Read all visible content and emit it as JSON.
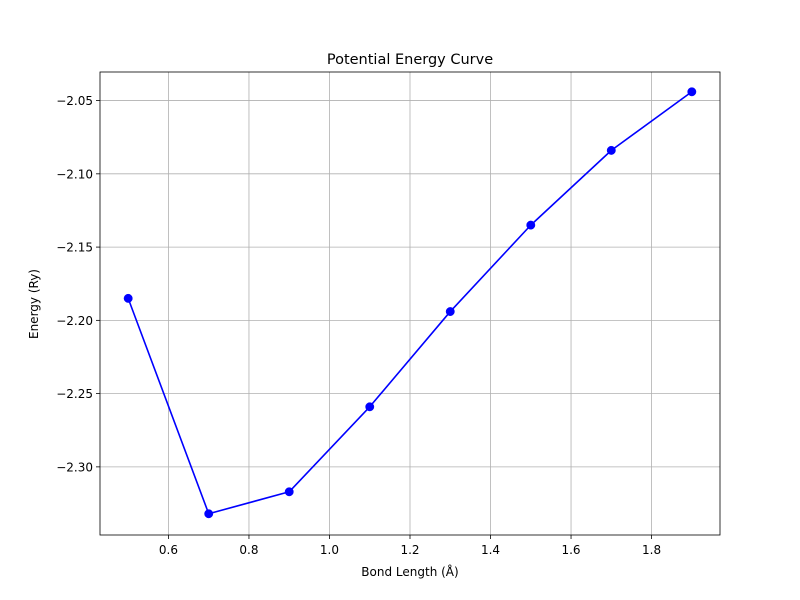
{
  "chart_data": {
    "type": "line",
    "title": "Potential Energy Curve",
    "xlabel": "Bond Length (Å)",
    "ylabel": "Energy (Ry)",
    "grid": true,
    "xlim": [
      0.43,
      1.97
    ],
    "ylim": [
      -2.3465,
      -2.0305
    ],
    "x_ticks": [
      0.6,
      0.8,
      1.0,
      1.2,
      1.4,
      1.6,
      1.8
    ],
    "x_tick_labels": [
      "0.6",
      "0.8",
      "1.0",
      "1.2",
      "1.4",
      "1.6",
      "1.8"
    ],
    "y_ticks": [
      -2.3,
      -2.25,
      -2.2,
      -2.15,
      -2.1,
      -2.05
    ],
    "y_tick_labels": [
      "−2.30",
      "−2.25",
      "−2.20",
      "−2.15",
      "−2.10",
      "−2.05"
    ],
    "series": [
      {
        "color": "#0000ff",
        "marker": "circle",
        "x": [
          0.5,
          0.7,
          0.9,
          1.1,
          1.3,
          1.5,
          1.7,
          1.9
        ],
        "y": [
          -2.185,
          -2.332,
          -2.317,
          -2.259,
          -2.194,
          -2.135,
          -2.084,
          -2.044
        ]
      }
    ],
    "colors": {
      "grid": "#b0b0b0",
      "axes": "#000000",
      "background": "#ffffff"
    }
  }
}
